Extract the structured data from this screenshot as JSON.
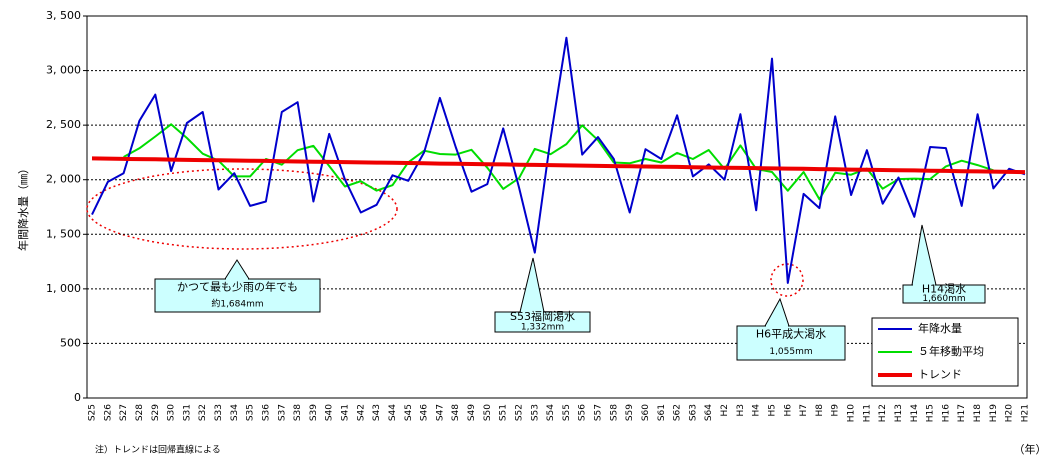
{
  "chart_data": {
    "type": "line",
    "y_label": "年間降水量（㎜）",
    "x_unit": "（年）",
    "note": "注）トレンドは回帰直線による",
    "categories": [
      "S25",
      "S26",
      "S27",
      "S28",
      "S29",
      "S30",
      "S31",
      "S32",
      "S33",
      "S34",
      "S35",
      "S36",
      "S37",
      "S38",
      "S39",
      "S40",
      "S41",
      "S42",
      "S43",
      "S44",
      "S45",
      "S46",
      "S47",
      "S48",
      "S49",
      "S50",
      "S51",
      "S52",
      "S53",
      "S54",
      "S55",
      "S56",
      "S57",
      "S58",
      "S59",
      "S60",
      "S61",
      "S62",
      "S63",
      "S64",
      "H2",
      "H3",
      "H4",
      "H5",
      "H6",
      "H7",
      "H8",
      "H9",
      "H10",
      "H11",
      "H12",
      "H13",
      "H14",
      "H15",
      "H16",
      "H17",
      "H18",
      "H19",
      "H20",
      "H21"
    ],
    "series": [
      {
        "name": "年降水量",
        "color": "#0000cc",
        "width": 2,
        "values": [
          1680,
          1980,
          2060,
          2540,
          2780,
          2080,
          2520,
          2620,
          1910,
          2060,
          1760,
          1800,
          2620,
          2710,
          1800,
          2420,
          2000,
          1700,
          1770,
          2040,
          1990,
          2250,
          2750,
          2300,
          1890,
          1960,
          2470,
          1930,
          1332,
          2380,
          3300,
          2230,
          2390,
          2190,
          1700,
          2280,
          2190,
          2590,
          2030,
          2140,
          2000,
          2600,
          1720,
          3110,
          1055,
          1870,
          1740,
          2580,
          1860,
          2270,
          1780,
          2020,
          1660,
          2300,
          2290,
          1760,
          2600,
          1920,
          2100,
          2050
        ]
      },
      {
        "name": "５年移動平均",
        "color": "#00dd00",
        "width": 2,
        "values": [
          null,
          null,
          2208,
          2288,
          2396,
          2508,
          2382,
          2238,
          2174,
          2030,
          2030,
          2190,
          2138,
          2270,
          2310,
          2126,
          1938,
          1986,
          1900,
          1950,
          2160,
          2266,
          2236,
          2230,
          2274,
          2110,
          1916,
          2014,
          2282,
          2234,
          2326,
          2498,
          2362,
          2158,
          2150,
          2190,
          2158,
          2246,
          2190,
          2272,
          2098,
          2314,
          2097,
          2071,
          1899,
          2071,
          1821,
          2064,
          2046,
          2102,
          1918,
          2006,
          2010,
          2006,
          2122,
          2174,
          2134,
          2086,
          null,
          null
        ]
      },
      {
        "name": "トレンド",
        "color": "#ee0000",
        "width": 4,
        "values": [
          2195,
          2193,
          2191,
          2189,
          2187,
          2184,
          2182,
          2180,
          2178,
          2176,
          2174,
          2172,
          2170,
          2167,
          2165,
          2163,
          2161,
          2159,
          2157,
          2155,
          2153,
          2151,
          2148,
          2146,
          2144,
          2142,
          2140,
          2138,
          2136,
          2134,
          2131,
          2129,
          2127,
          2125,
          2123,
          2121,
          2119,
          2117,
          2114,
          2112,
          2110,
          2108,
          2106,
          2104,
          2102,
          2100,
          2097,
          2095,
          2093,
          2091,
          2089,
          2087,
          2085,
          2083,
          2081,
          2078,
          2076,
          2074,
          2072,
          2070
        ]
      }
    ],
    "ylim": [
      0,
      3500
    ],
    "yticks": [
      0,
      500,
      {
        "value": 1000,
        "label": "1, 000"
      },
      {
        "value": 1500,
        "label": "1, 500"
      },
      {
        "value": 2000,
        "label": "2, 000"
      },
      {
        "value": 2500,
        "label": "2, 500"
      },
      {
        "value": 3000,
        "label": "3, 000"
      },
      {
        "value": 3500,
        "label": "3, 500"
      }
    ],
    "grid": true,
    "legend": "lower-right",
    "annotations": [
      {
        "lines": [
          "かつて最も少雨の年でも",
          "約1,684mm"
        ]
      },
      {
        "lines": [
          "S53福岡渇水",
          "1,332mm"
        ]
      },
      {
        "lines": [
          "H6平成大渇水",
          "1,055mm"
        ]
      },
      {
        "lines": [
          "H14渇水",
          "1,660mm"
        ]
      }
    ]
  }
}
